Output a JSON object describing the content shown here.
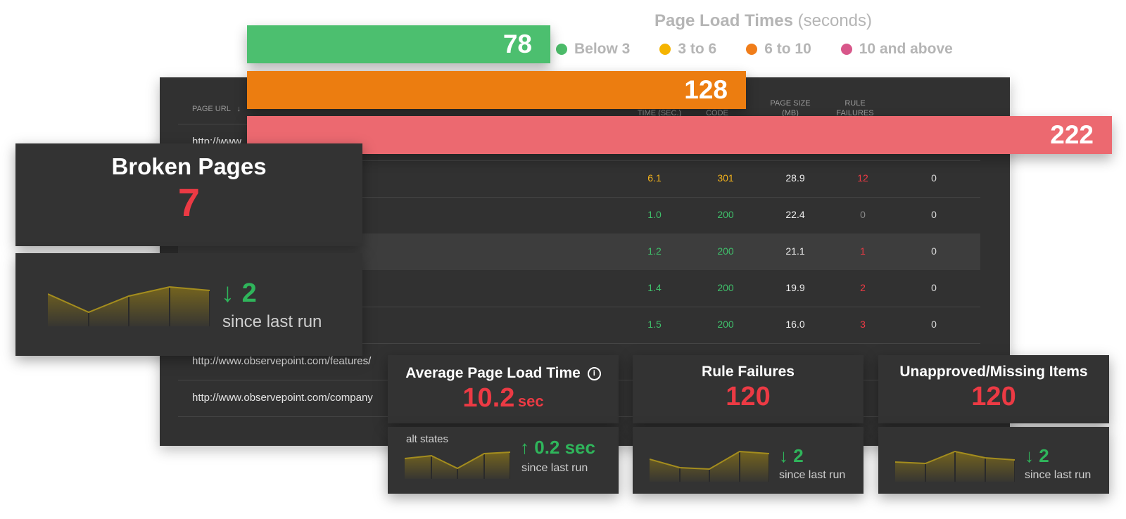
{
  "legend": {
    "title": "Page Load Times",
    "unit": "(seconds)",
    "items": [
      {
        "label": "Below 3",
        "color": "#4cbc6a"
      },
      {
        "label": "3 to 6",
        "color": "#f5b400"
      },
      {
        "label": "6 to 10",
        "color": "#f07d1a"
      },
      {
        "label": "10 and above",
        "color": "#d8578a"
      }
    ]
  },
  "bars": [
    {
      "value": "78",
      "color": "#4cbf6f",
      "fraction": 0.351
    },
    {
      "value": "128",
      "color": "#ec7d10",
      "fraction": 0.577
    },
    {
      "value": "222",
      "color": "#ec6970",
      "fraction": 1.0
    }
  ],
  "table": {
    "headers": {
      "url": "PAGE URL",
      "load_time": "PAGE LOAD TIME (sec.)",
      "status": "STATUS CODE",
      "size": "PAGE SIZE (mb)",
      "rules": "RULE FAILURES"
    },
    "rows": [
      {
        "url": "http://www",
        "load": "",
        "status": "",
        "size": "",
        "rules": "",
        "extra": ""
      },
      {
        "url": "",
        "load": "6.1",
        "status": "301",
        "size": "28.9",
        "rules": "12",
        "extra": "0"
      },
      {
        "url": "",
        "load": "1.0",
        "status": "200",
        "size": "22.4",
        "rules": "0",
        "extra": "0"
      },
      {
        "url": "",
        "load": "1.2",
        "status": "200",
        "size": "21.1",
        "rules": "1",
        "extra": "0"
      },
      {
        "url": "",
        "load": "1.4",
        "status": "200",
        "size": "19.9",
        "rules": "2",
        "extra": "0"
      },
      {
        "url": "",
        "load": "1.5",
        "status": "200",
        "size": "16.0",
        "rules": "3",
        "extra": "0"
      },
      {
        "url": "http://www.observepoint.com/features/",
        "load": "",
        "status": "",
        "size": "",
        "rules": "",
        "extra": ""
      },
      {
        "url": "http://www.observepoint.com/company",
        "load": "",
        "status": "",
        "size": "",
        "rules": "",
        "extra": ""
      }
    ]
  },
  "broken_pages": {
    "title": "Broken Pages",
    "value": "7",
    "delta": "2",
    "since": "since last run",
    "trend": [
      30,
      13,
      28,
      36,
      33
    ]
  },
  "avg_load": {
    "title": "Average Page Load Time",
    "value": "10.2",
    "unit": "sec",
    "caption": "alt states",
    "delta": "0.2 sec",
    "since": "since last run",
    "trend": [
      16,
      18,
      8,
      20,
      21
    ]
  },
  "rule_failures": {
    "title": "Rule Failures",
    "value": "120",
    "delta": "2",
    "since": "since last run",
    "trend": [
      16,
      10,
      9,
      22,
      20
    ]
  },
  "unapproved": {
    "title": "Unapproved/Missing Items",
    "value": "120",
    "delta": "2",
    "since": "since last run",
    "trend": [
      18,
      17,
      28,
      22,
      20
    ]
  }
}
